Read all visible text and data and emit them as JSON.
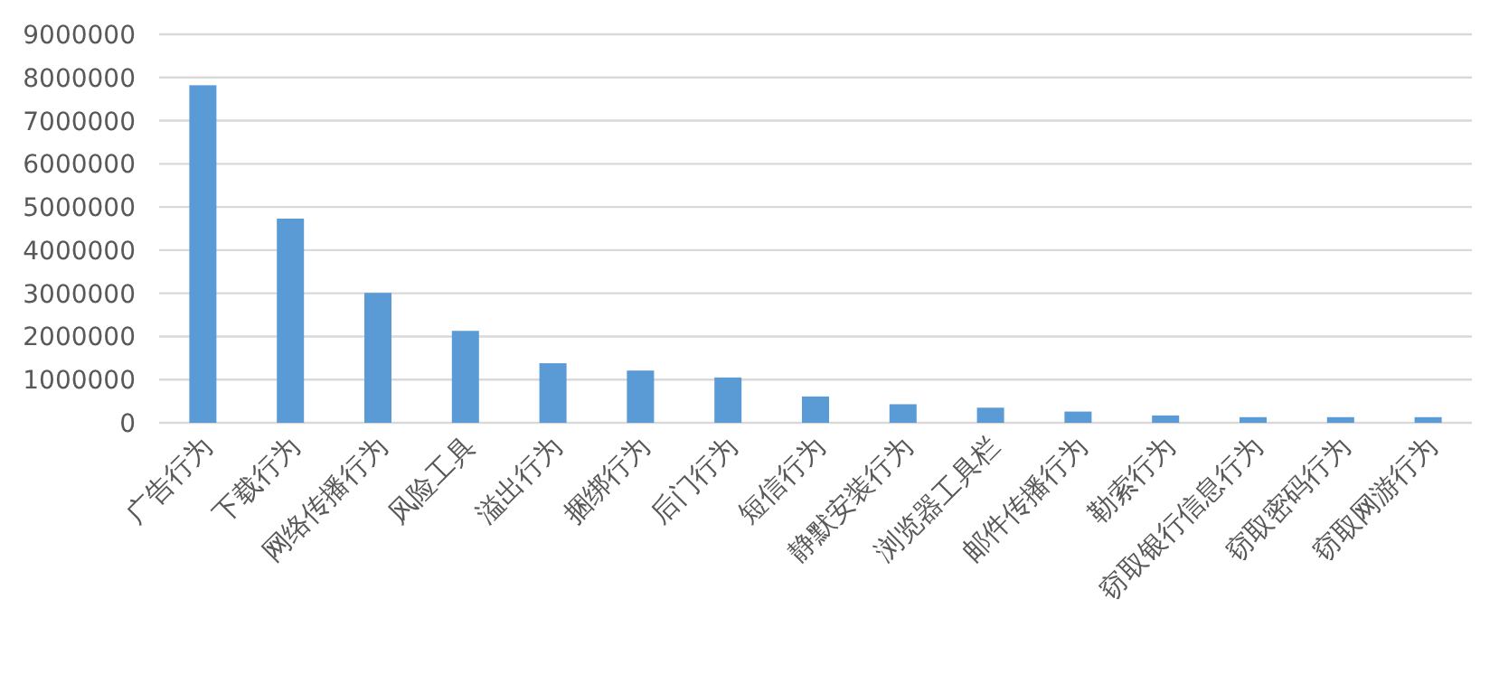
{
  "chart_data": {
    "type": "bar",
    "categories": [
      "广告行为",
      "下载行为",
      "网络传播行为",
      "风险工具",
      "溢出行为",
      "捆绑行为",
      "后门行为",
      "短信行为",
      "静默安装行为",
      "浏览器工具栏",
      "邮件传播行为",
      "勒索行为",
      "窃取银行信息行为",
      "窃取密码行为",
      "窃取网游行为"
    ],
    "values": [
      7820000,
      4730000,
      3010000,
      2130000,
      1380000,
      1210000,
      1050000,
      610000,
      430000,
      350000,
      260000,
      170000,
      130000,
      130000,
      130000
    ],
    "color": "#5b9bd5",
    "ylim": [
      0,
      9000000
    ],
    "yticks": [
      0,
      1000000,
      2000000,
      3000000,
      4000000,
      5000000,
      6000000,
      7000000,
      8000000,
      9000000
    ],
    "grid": "y"
  }
}
